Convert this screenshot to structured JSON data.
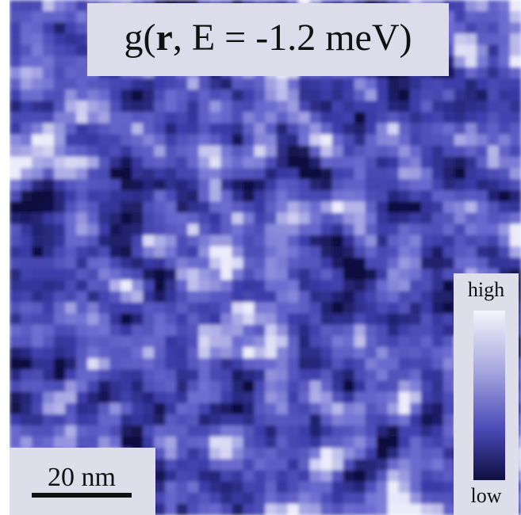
{
  "figure": {
    "title": {
      "prefix": "g(",
      "bold": "r",
      "suffix": ", E = -1.2 meV)"
    },
    "colorbar": {
      "high": "high",
      "low": "low"
    },
    "scale_bar": {
      "label": "20 nm"
    }
  }
}
